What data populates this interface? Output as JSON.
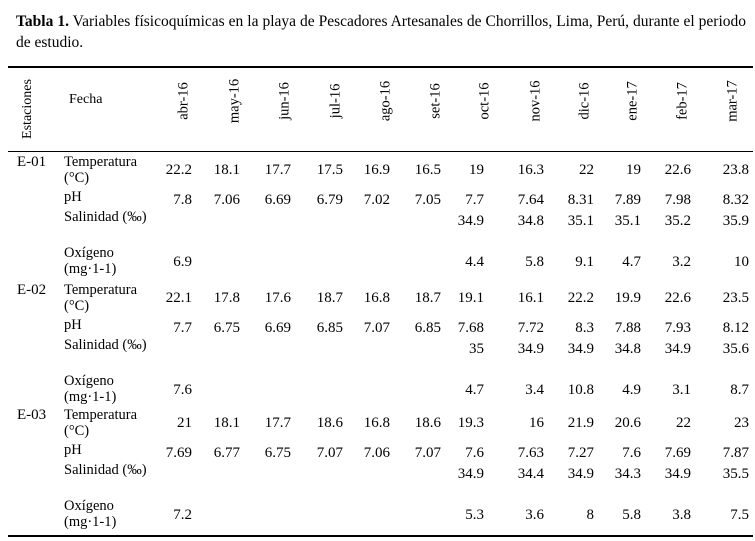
{
  "caption": {
    "label": "Tabla 1.",
    "text": "Variables físicoquímicas en la playa de Pescadores Artesanales de Chorrillos, Lima, Perú, durante el periodo de estudio."
  },
  "headers": {
    "estaciones": "Estaciones",
    "fecha": "Fecha",
    "months": [
      "abr-16",
      "may-16",
      "jun-16",
      "jul-16",
      "ago-16",
      "set-16",
      "oct-16",
      "nov-16",
      "dic-16",
      "ene-17",
      "feb-17",
      "mar-17"
    ]
  },
  "stations": [
    {
      "name": "E-01",
      "rows": [
        {
          "label": "Temperatura (°C)",
          "values": [
            "22.2",
            "18.1",
            "17.7",
            "17.5",
            "16.9",
            "16.5",
            "19",
            "16.3",
            "22",
            "19",
            "22.6",
            "23.8"
          ]
        },
        {
          "label": "pH",
          "values": [
            "7.8",
            "7.06",
            "6.69",
            "6.79",
            "7.02",
            "7.05",
            "7.7",
            "7.64",
            "8.31",
            "7.89",
            "7.98",
            "8.32"
          ]
        },
        {
          "label": "Salinidad (‰)",
          "values": [
            "",
            "",
            "",
            "",
            "",
            "",
            "34.9",
            "34.8",
            "35.1",
            "35.1",
            "35.2",
            "35.9"
          ]
        },
        {
          "label": "Oxígeno (mg·1-1)",
          "values": [
            "6.9",
            "",
            "",
            "",
            "",
            "",
            "4.4",
            "5.8",
            "9.1",
            "4.7",
            "3.2",
            "10"
          ]
        }
      ]
    },
    {
      "name": "E-02",
      "rows": [
        {
          "label": "Temperatura (°C)",
          "values": [
            "22.1",
            "17.8",
            "17.6",
            "18.7",
            "16.8",
            "18.7",
            "19.1",
            "16.1",
            "22.2",
            "19.9",
            "22.6",
            "23.5"
          ]
        },
        {
          "label": "pH",
          "values": [
            "7.7",
            "6.75",
            "6.69",
            "6.85",
            "7.07",
            "6.85",
            "7.68",
            "7.72",
            "8.3",
            "7.88",
            "7.93",
            "8.12"
          ]
        },
        {
          "label": "Salinidad (‰)",
          "values": [
            "",
            "",
            "",
            "",
            "",
            "",
            "35",
            "34.9",
            "34.9",
            "34.8",
            "34.9",
            "35.6"
          ]
        },
        {
          "label": "Oxígeno (mg·1-1)",
          "values": [
            "7.6",
            "",
            "",
            "",
            "",
            "",
            "4.7",
            "3.4",
            "10.8",
            "4.9",
            "3.1",
            "8.7"
          ]
        }
      ]
    },
    {
      "name": "E-03",
      "rows": [
        {
          "label": "Temperatura (°C)",
          "values": [
            "21",
            "18.1",
            "17.7",
            "18.6",
            "16.8",
            "18.6",
            "19.3",
            "16",
            "21.9",
            "20.6",
            "22",
            "23"
          ]
        },
        {
          "label": "pH",
          "values": [
            "7.69",
            "6.77",
            "6.75",
            "7.07",
            "7.06",
            "7.07",
            "7.6",
            "7.63",
            "7.27",
            "7.6",
            "7.69",
            "7.87"
          ]
        },
        {
          "label": "Salinidad (‰)",
          "values": [
            "",
            "",
            "",
            "",
            "",
            "",
            "34.9",
            "34.4",
            "34.9",
            "34.3",
            "34.9",
            "35.5"
          ]
        },
        {
          "label": "Oxígeno (mg·1-1)",
          "values": [
            "7.2",
            "",
            "",
            "",
            "",
            "",
            "5.3",
            "3.6",
            "8",
            "5.8",
            "3.8",
            "7.5"
          ]
        }
      ]
    }
  ]
}
